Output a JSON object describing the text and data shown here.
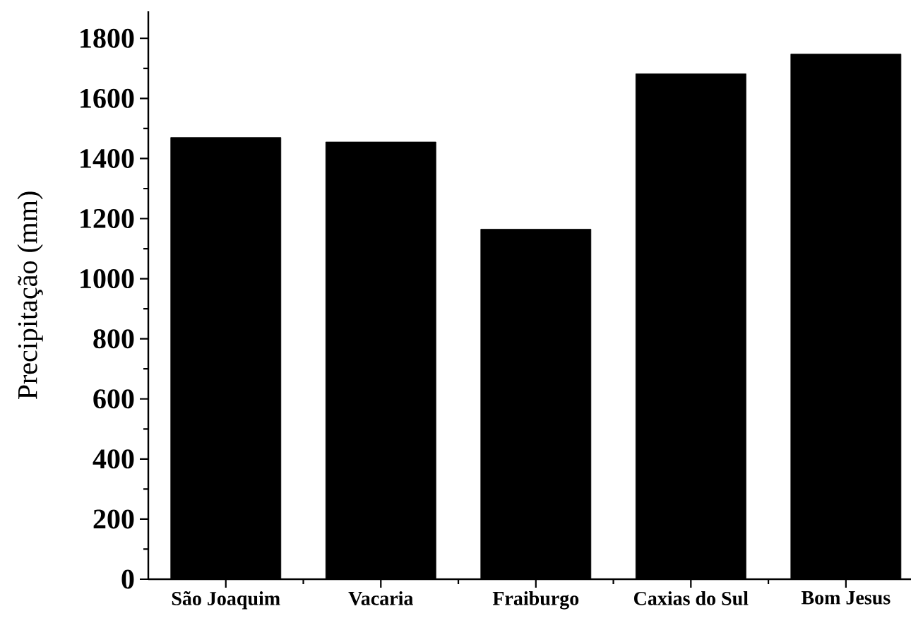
{
  "chart_data": {
    "type": "bar",
    "ylabel": "Precipitação (mm)",
    "categories": [
      "São Joaquim",
      "Vacaria",
      "Fraiburgo",
      "Caxias do Sul",
      "Bom Jesus"
    ],
    "values": [
      1470,
      1455,
      1165,
      1682,
      1748
    ],
    "color": "#000000",
    "ylim": [
      0,
      1890
    ],
    "yticks": [
      0,
      200,
      400,
      600,
      800,
      1000,
      1200,
      1400,
      1600,
      1800
    ],
    "grid": false
  }
}
